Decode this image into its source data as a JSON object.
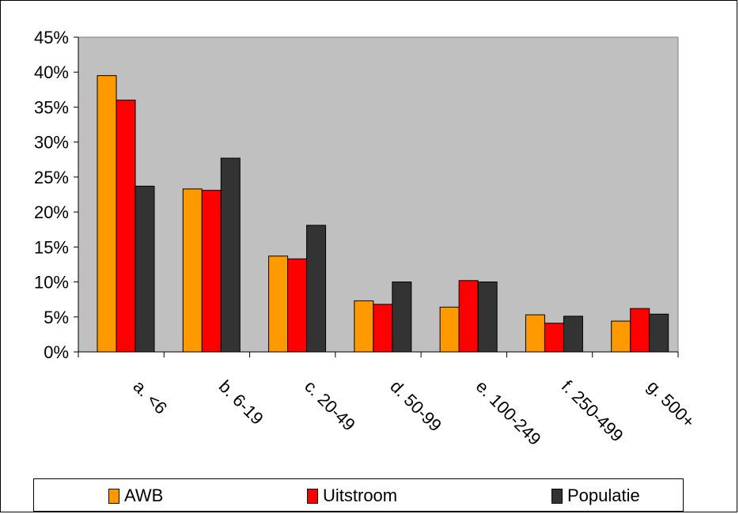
{
  "chart_data": {
    "type": "bar",
    "categories": [
      "a.  <6",
      "b.  6-19",
      "c.  20-49",
      "d.  50-99",
      "e.  100-249",
      "f.  250-499",
      "g.  500+"
    ],
    "series": [
      {
        "name": "AWB",
        "color": "#ff9900",
        "values": [
          39.5,
          23.3,
          13.7,
          7.3,
          6.4,
          5.3,
          4.4
        ]
      },
      {
        "name": "Uitstroom",
        "color": "#ff0000",
        "values": [
          36.0,
          23.1,
          13.3,
          6.8,
          10.2,
          4.1,
          6.2
        ]
      },
      {
        "name": "Populatie",
        "color": "#333333",
        "values": [
          23.7,
          27.7,
          18.1,
          10.0,
          10.0,
          5.1,
          5.4
        ]
      }
    ],
    "ylim": [
      0,
      45
    ],
    "yticks": [
      "0%",
      "5%",
      "10%",
      "15%",
      "20%",
      "25%",
      "30%",
      "35%",
      "40%",
      "45%"
    ],
    "plot_background": "#c0c0c0",
    "grid": false,
    "legend_position": "bottom"
  }
}
